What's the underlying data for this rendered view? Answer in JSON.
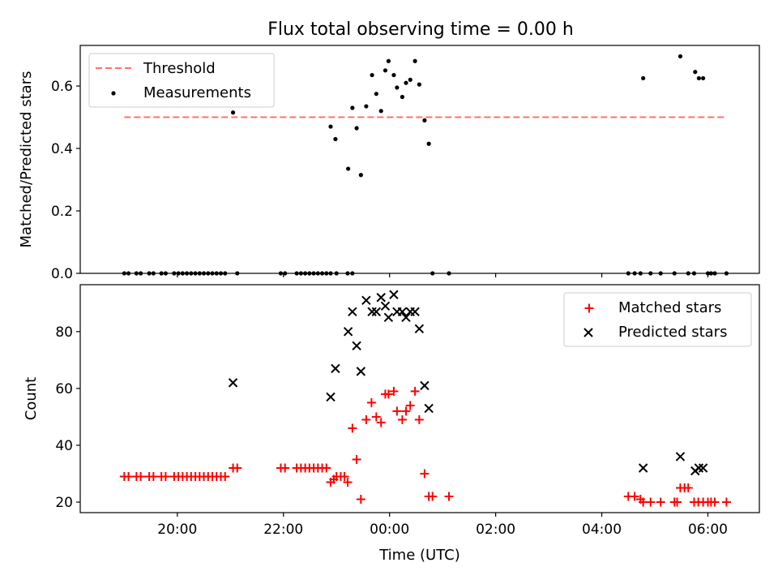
{
  "chart_data": {
    "title": "Flux total observing time = 0.00 h",
    "xlabel": "Time (UTC)",
    "x_ticks": [
      "20:00",
      "22:00",
      "00:00",
      "02:00",
      "04:00",
      "06:00"
    ],
    "x_tick_hours": [
      20,
      22,
      24,
      26,
      28,
      30
    ],
    "xlim_hours": [
      18.17,
      30.97
    ],
    "colors": {
      "threshold": "#ff7070",
      "measurements": "#000000",
      "matched": "#ff0000",
      "predicted": "#000000"
    },
    "panels": [
      {
        "type": "scatter",
        "ylabel": "Matched/Predicted stars",
        "ylim": [
          0,
          0.73
        ],
        "y_ticks": [
          0.0,
          0.2,
          0.4,
          0.6
        ],
        "y_tick_labels": [
          "0.0",
          "0.2",
          "0.4",
          "0.6"
        ],
        "legend_position": "top-left",
        "threshold": {
          "name": "Threshold",
          "value": 0.5,
          "x_start": 19.0,
          "x_end": 30.35
        },
        "series": [
          {
            "name": "Measurements",
            "marker": "dot",
            "points": [
              [
                19.0,
                0
              ],
              [
                19.08,
                0
              ],
              [
                19.23,
                0
              ],
              [
                19.31,
                0
              ],
              [
                19.47,
                0
              ],
              [
                19.55,
                0
              ],
              [
                19.7,
                0
              ],
              [
                19.78,
                0
              ],
              [
                19.94,
                0
              ],
              [
                20.02,
                0
              ],
              [
                20.1,
                0
              ],
              [
                20.18,
                0
              ],
              [
                20.26,
                0
              ],
              [
                20.34,
                0
              ],
              [
                20.42,
                0
              ],
              [
                20.5,
                0
              ],
              [
                20.58,
                0
              ],
              [
                20.66,
                0
              ],
              [
                20.74,
                0
              ],
              [
                20.82,
                0
              ],
              [
                20.9,
                0
              ],
              [
                21.05,
                0.515
              ],
              [
                21.13,
                0
              ],
              [
                21.95,
                0
              ],
              [
                22.03,
                0
              ],
              [
                22.25,
                0
              ],
              [
                22.33,
                0
              ],
              [
                22.41,
                0
              ],
              [
                22.49,
                0
              ],
              [
                22.57,
                0
              ],
              [
                22.65,
                0
              ],
              [
                22.73,
                0
              ],
              [
                22.81,
                0
              ],
              [
                22.89,
                0
              ],
              [
                23.0,
                0
              ],
              [
                23.21,
                0
              ],
              [
                23.3,
                0
              ],
              [
                22.89,
                0.47
              ],
              [
                22.98,
                0.43
              ],
              [
                23.22,
                0.335
              ],
              [
                23.3,
                0.53
              ],
              [
                23.38,
                0.465
              ],
              [
                23.46,
                0.315
              ],
              [
                23.56,
                0.535
              ],
              [
                23.67,
                0.635
              ],
              [
                23.75,
                0.575
              ],
              [
                23.84,
                0.52
              ],
              [
                23.92,
                0.65
              ],
              [
                23.98,
                0.68
              ],
              [
                24.08,
                0.635
              ],
              [
                24.14,
                0.595
              ],
              [
                24.24,
                0.565
              ],
              [
                24.31,
                0.61
              ],
              [
                24.39,
                0.62
              ],
              [
                24.48,
                0.68
              ],
              [
                24.56,
                0.605
              ],
              [
                24.66,
                0.49
              ],
              [
                24.74,
                0.415
              ],
              [
                24.81,
                0
              ],
              [
                25.12,
                0
              ],
              [
                28.5,
                0
              ],
              [
                28.62,
                0
              ],
              [
                28.73,
                0
              ],
              [
                28.78,
                0.625
              ],
              [
                28.92,
                0
              ],
              [
                29.11,
                0
              ],
              [
                29.37,
                0
              ],
              [
                29.48,
                0.695
              ],
              [
                29.63,
                0
              ],
              [
                29.74,
                0
              ],
              [
                29.76,
                0.645
              ],
              [
                29.83,
                0.625
              ],
              [
                29.91,
                0.625
              ],
              [
                30.0,
                0
              ],
              [
                30.06,
                0
              ],
              [
                30.13,
                0
              ],
              [
                30.35,
                0
              ]
            ]
          }
        ]
      },
      {
        "type": "scatter",
        "ylabel": "Count",
        "ylim": [
          16.3,
          96.5
        ],
        "y_ticks": [
          20,
          40,
          60,
          80
        ],
        "y_tick_labels": [
          "20",
          "40",
          "60",
          "80"
        ],
        "legend_position": "top-right",
        "series": [
          {
            "name": "Matched stars",
            "marker": "plus",
            "points": [
              [
                19.0,
                29
              ],
              [
                19.08,
                29
              ],
              [
                19.23,
                29
              ],
              [
                19.31,
                29
              ],
              [
                19.47,
                29
              ],
              [
                19.55,
                29
              ],
              [
                19.7,
                29
              ],
              [
                19.78,
                29
              ],
              [
                19.94,
                29
              ],
              [
                20.02,
                29
              ],
              [
                20.1,
                29
              ],
              [
                20.18,
                29
              ],
              [
                20.26,
                29
              ],
              [
                20.34,
                29
              ],
              [
                20.42,
                29
              ],
              [
                20.5,
                29
              ],
              [
                20.58,
                29
              ],
              [
                20.66,
                29
              ],
              [
                20.74,
                29
              ],
              [
                20.82,
                29
              ],
              [
                20.9,
                29
              ],
              [
                21.05,
                32
              ],
              [
                21.13,
                32
              ],
              [
                21.95,
                32
              ],
              [
                22.03,
                32
              ],
              [
                22.25,
                32
              ],
              [
                22.33,
                32
              ],
              [
                22.41,
                32
              ],
              [
                22.49,
                32
              ],
              [
                22.57,
                32
              ],
              [
                22.65,
                32
              ],
              [
                22.73,
                32
              ],
              [
                22.81,
                32
              ],
              [
                22.89,
                27
              ],
              [
                22.95,
                28
              ],
              [
                23.0,
                29
              ],
              [
                23.08,
                29
              ],
              [
                23.15,
                29
              ],
              [
                23.21,
                27
              ],
              [
                23.3,
                46
              ],
              [
                23.38,
                35
              ],
              [
                23.46,
                21
              ],
              [
                23.56,
                49
              ],
              [
                23.66,
                55
              ],
              [
                23.75,
                50
              ],
              [
                23.84,
                48
              ],
              [
                23.92,
                58
              ],
              [
                23.98,
                58
              ],
              [
                24.08,
                59
              ],
              [
                24.14,
                52
              ],
              [
                24.24,
                49
              ],
              [
                24.31,
                52
              ],
              [
                24.39,
                54
              ],
              [
                24.48,
                59
              ],
              [
                24.56,
                49
              ],
              [
                24.66,
                30
              ],
              [
                24.74,
                22
              ],
              [
                24.81,
                22
              ],
              [
                25.12,
                22
              ],
              [
                28.5,
                22
              ],
              [
                28.62,
                22
              ],
              [
                28.73,
                21
              ],
              [
                28.78,
                20
              ],
              [
                28.92,
                20
              ],
              [
                29.11,
                20
              ],
              [
                29.37,
                20
              ],
              [
                29.42,
                20
              ],
              [
                29.48,
                25
              ],
              [
                29.56,
                25
              ],
              [
                29.63,
                25
              ],
              [
                29.74,
                20
              ],
              [
                29.82,
                20
              ],
              [
                29.91,
                20
              ],
              [
                30.0,
                20
              ],
              [
                30.06,
                20
              ],
              [
                30.13,
                20
              ],
              [
                30.35,
                20
              ]
            ]
          },
          {
            "name": "Predicted stars",
            "marker": "cross",
            "points": [
              [
                21.05,
                62
              ],
              [
                22.89,
                57
              ],
              [
                22.98,
                67
              ],
              [
                23.22,
                80
              ],
              [
                23.3,
                87
              ],
              [
                23.38,
                75
              ],
              [
                23.46,
                66
              ],
              [
                23.56,
                91
              ],
              [
                23.67,
                87
              ],
              [
                23.75,
                87
              ],
              [
                23.84,
                92
              ],
              [
                23.92,
                89
              ],
              [
                23.98,
                85
              ],
              [
                24.08,
                93
              ],
              [
                24.14,
                87
              ],
              [
                24.24,
                87
              ],
              [
                24.31,
                85
              ],
              [
                24.39,
                87
              ],
              [
                24.48,
                87
              ],
              [
                24.56,
                81
              ],
              [
                24.66,
                61
              ],
              [
                24.74,
                53
              ],
              [
                28.78,
                32
              ],
              [
                29.48,
                36
              ],
              [
                29.76,
                31
              ],
              [
                29.83,
                32
              ],
              [
                29.91,
                32
              ]
            ]
          }
        ]
      }
    ]
  }
}
